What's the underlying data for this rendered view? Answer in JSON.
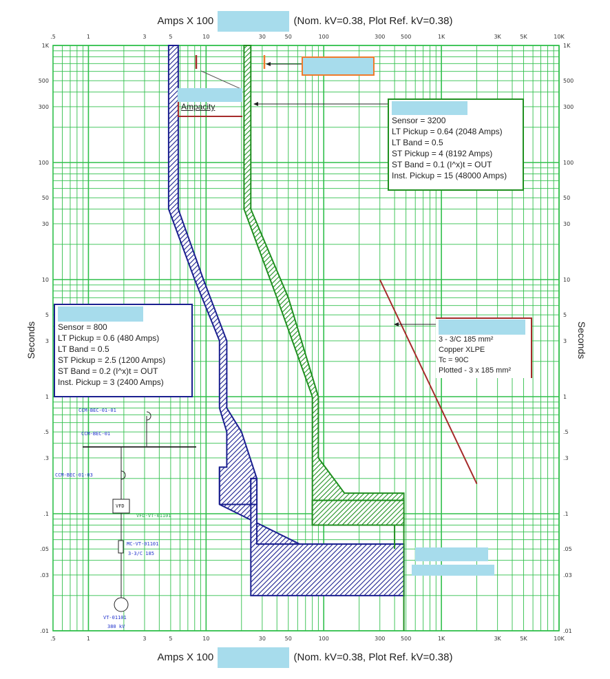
{
  "header": {
    "amps_label": "Amps  X  100",
    "nominal_kv": "(Nom. kV=0.38, Plot Ref. kV=0.38)"
  },
  "footer": {
    "amps_label": "Amps  X  100",
    "nominal_kv": "(Nom. kV=0.38, Plot Ref. kV=0.38)"
  },
  "y_axis_label": "Seconds",
  "colors": {
    "grid": "#2fbf4a",
    "blue_device": "#1a1f8f",
    "green_device": "#1f8f1f",
    "cable": "#a52a2a",
    "orange_box": "#f07a2a",
    "redaction": "#a7dcec",
    "sld_text": "#2233cc"
  },
  "chart_data": {
    "type": "line",
    "x_scale": "log",
    "y_scale": "log",
    "x_unit": "Amps X 100",
    "y_unit": "Seconds",
    "xlim": [
      0.5,
      10000
    ],
    "ylim": [
      0.01,
      1000
    ],
    "grid": true,
    "x_tick_labels": [
      {
        "v": 0.5,
        "t": ".5"
      },
      {
        "v": 1,
        "t": "1"
      },
      {
        "v": 3,
        "t": "3"
      },
      {
        "v": 5,
        "t": "5"
      },
      {
        "v": 10,
        "t": "10"
      },
      {
        "v": 30,
        "t": "30"
      },
      {
        "v": 50,
        "t": "50"
      },
      {
        "v": 100,
        "t": "100"
      },
      {
        "v": 300,
        "t": "300"
      },
      {
        "v": 500,
        "t": "500"
      },
      {
        "v": 1000,
        "t": "1K"
      },
      {
        "v": 3000,
        "t": "3K"
      },
      {
        "v": 5000,
        "t": "5K"
      },
      {
        "v": 10000,
        "t": "10K"
      }
    ],
    "y_tick_labels": [
      {
        "v": 1000,
        "t": "1K"
      },
      {
        "v": 500,
        "t": "500"
      },
      {
        "v": 300,
        "t": "300"
      },
      {
        "v": 100,
        "t": "100"
      },
      {
        "v": 50,
        "t": "50"
      },
      {
        "v": 30,
        "t": "30"
      },
      {
        "v": 10,
        "t": "10"
      },
      {
        "v": 5,
        "t": "5"
      },
      {
        "v": 3,
        "t": "3"
      },
      {
        "v": 1,
        "t": "1"
      },
      {
        "v": 0.5,
        "t": ".5"
      },
      {
        "v": 0.3,
        "t": ".3"
      },
      {
        "v": 0.1,
        "t": ".1"
      },
      {
        "v": 0.05,
        "t": ".05"
      },
      {
        "v": 0.03,
        "t": ".03"
      },
      {
        "v": 0.01,
        "t": ".01"
      }
    ],
    "series": [
      {
        "color": "#1a1f8f",
        "band_left": [
          [
            4.8,
            1000
          ],
          [
            4.8,
            40
          ],
          [
            8,
            10
          ],
          [
            13,
            3
          ],
          [
            13,
            0.8
          ],
          [
            15,
            0.5
          ],
          [
            15,
            0.25
          ],
          [
            13,
            0.25
          ],
          [
            13,
            0.12
          ]
        ],
        "band_right": [
          [
            5.8,
            1000
          ],
          [
            5.8,
            40
          ],
          [
            9.5,
            10
          ],
          [
            15,
            3
          ],
          [
            15,
            0.8
          ],
          [
            20,
            0.5
          ],
          [
            27,
            0.2
          ],
          [
            27,
            0.055
          ],
          [
            480,
            0.055
          ],
          [
            480,
            0.02
          ]
        ],
        "instantaneous": [
          [
            13,
            0.12
          ],
          [
            24,
            0.12
          ],
          [
            24,
            0.02
          ],
          [
            480,
            0.02
          ]
        ]
      },
      {
        "color": "#1f8f1f",
        "band_left": [
          [
            21,
            1000
          ],
          [
            21,
            40
          ],
          [
            40,
            7
          ],
          [
            80,
            1
          ],
          [
            80,
            0.13
          ],
          [
            480,
            0.13
          ]
        ],
        "band_right": [
          [
            24,
            1000
          ],
          [
            24,
            40
          ],
          [
            50,
            7
          ],
          [
            90,
            1
          ],
          [
            90,
            0.3
          ],
          [
            150,
            0.15
          ],
          [
            480,
            0.15
          ],
          [
            480,
            0.01
          ]
        ],
        "instantaneous": [
          [
            80,
            0.08
          ],
          [
            400,
            0.08
          ],
          [
            400,
            0.05
          ],
          [
            480,
            0.05
          ]
        ]
      },
      {
        "color": "#a52a2a",
        "points": [
          [
            300,
            10
          ],
          [
            2000,
            0.18
          ]
        ]
      }
    ]
  },
  "breaker_800": {
    "lines": [
      "Sensor = 800",
      "LT Pickup = 0.6 (480 Amps)",
      "LT Band = 0.5",
      "ST Pickup = 2.5 (1200 Amps)",
      "ST Band = 0.2  (I^x)t = OUT",
      "Inst. Pickup = 3 (2400 Amps)"
    ]
  },
  "breaker_3200": {
    "lines": [
      "Sensor = 3200",
      "LT Pickup = 0.64 (2048 Amps)",
      "LT Band = 0.5",
      "ST Pickup = 4 (8192 Amps)",
      "ST Band = 0.1  (I^x)t = OUT",
      "Inst. Pickup = 15 (48000 Amps)"
    ]
  },
  "cable": {
    "lines": [
      "3 - 3/C 185 mm²",
      "Copper  XLPE",
      "Tc = 90C",
      "Plotted - 3 x 185 mm²"
    ]
  },
  "ampacity_label": "Ampacity",
  "single_line": {
    "breaker_top": "CCM-BEC-01-01",
    "bus": "CCM-BEC-01",
    "breaker_bottom": "CCM-BEC-01-03",
    "vfd_box": "VFD",
    "vfd_tag": "VFD-VT-01101",
    "motor_cable": "MC-VT-01101",
    "cable_size": "3-3/C 185",
    "motor": "VT-01101",
    "motor_kv": "380 kV"
  }
}
